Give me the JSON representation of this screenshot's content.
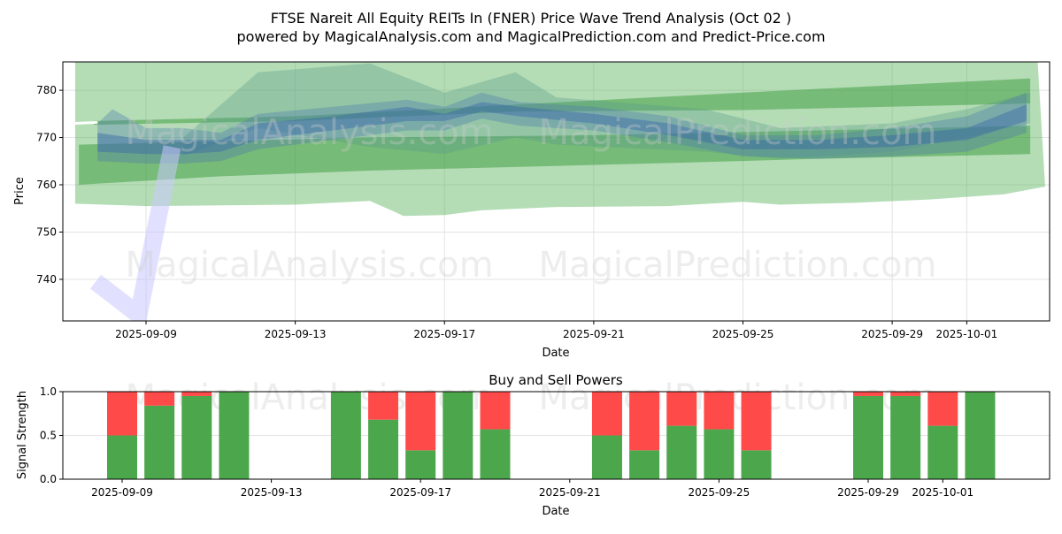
{
  "title_line1": "FTSE Nareit All Equity REITs In (FNER) Price Wave Trend Analysis (Oct 02 )",
  "title_line2": "powered by MagicalAnalysis.com and MagicalPrediction.com and Predict-Price.com",
  "watermark": "MagicalAnalysis.com    MagicalPrediction.com",
  "chart_data": [
    {
      "type": "area",
      "title": "",
      "xlabel": "Date",
      "ylabel": "Price",
      "ylim": [
        731.2,
        786.0
      ],
      "xlim_days_from_2025_09_09": [
        -2.23,
        24.22
      ],
      "y_ticks": [
        "740",
        "750",
        "760",
        "770",
        "780"
      ],
      "x_ticks": [
        {
          "label": "2025-09-09",
          "day": 0
        },
        {
          "label": "2025-09-13",
          "day": 4
        },
        {
          "label": "2025-09-17",
          "day": 8
        },
        {
          "label": "2025-09-21",
          "day": 12
        },
        {
          "label": "2025-09-25",
          "day": 16
        },
        {
          "label": "2025-09-29",
          "day": 20
        },
        {
          "label": "2025-10-01",
          "day": 22
        }
      ],
      "grid": true,
      "bands": [
        {
          "name": "outer-range",
          "color": "#4caf50",
          "opacity": 0.42,
          "upper": [
            [
              -1.9,
              786
            ],
            [
              23.9,
              786
            ]
          ],
          "lower": [
            [
              -1.9,
              756
            ],
            [
              0,
              755.5
            ],
            [
              4,
              755.8
            ],
            [
              6,
              756.6
            ],
            [
              6.6,
              754.5
            ],
            [
              6.9,
              753.4
            ],
            [
              8,
              753.6
            ],
            [
              9,
              754.6
            ],
            [
              11,
              755.3
            ],
            [
              14,
              755.5
            ],
            [
              16,
              756.4
            ],
            [
              17,
              755.8
            ],
            [
              19,
              756.2
            ],
            [
              21,
              756.9
            ],
            [
              23,
              758
            ],
            [
              24.1,
              759.6
            ]
          ]
        },
        {
          "name": "lower-trend",
          "color": "#3a9a3a",
          "opacity": 0.5,
          "upper": [
            [
              -1.8,
              768.5
            ],
            [
              6,
              770
            ],
            [
              12,
              770.5
            ],
            [
              18,
              771.5
            ],
            [
              23.7,
              772.5
            ]
          ],
          "lower": [
            [
              -1.8,
              760
            ],
            [
              2,
              761.8
            ],
            [
              6,
              763
            ],
            [
              10,
              763.8
            ],
            [
              14,
              764.6
            ],
            [
              18,
              765.5
            ],
            [
              23.7,
              766.5
            ]
          ]
        },
        {
          "name": "upper-trend",
          "color": "#3a9a3a",
          "opacity": 0.5,
          "upper": [
            [
              -1.4,
              773.5
            ],
            [
              4,
              774.5
            ],
            [
              10,
              777
            ],
            [
              16,
              779.5
            ],
            [
              23.7,
              782.5
            ]
          ],
          "lower": [
            [
              -1.4,
              772.7
            ],
            [
              4,
              773.5
            ],
            [
              10,
              775.5
            ],
            [
              16,
              775.8
            ],
            [
              23.7,
              777.2
            ]
          ]
        },
        {
          "name": "wave-upper-shade",
          "color": "#5a9a8a",
          "opacity": 0.35,
          "upper": [
            [
              1,
              770
            ],
            [
              3,
              783.8
            ],
            [
              6,
              785.7
            ],
            [
              8,
              779.5
            ],
            [
              9.9,
              783.8
            ],
            [
              11,
              778.5
            ],
            [
              15,
              776
            ],
            [
              17,
              772
            ],
            [
              20,
              773
            ],
            [
              22,
              776
            ],
            [
              23.7,
              779.5
            ]
          ],
          "lower": [
            [
              23.7,
              773
            ],
            [
              22,
              770
            ],
            [
              20,
              767
            ],
            [
              17,
              765.5
            ],
            [
              15,
              767
            ],
            [
              11,
              768.5
            ],
            [
              9.9,
              770
            ],
            [
              8,
              766.5
            ],
            [
              6,
              768
            ],
            [
              3,
              772
            ],
            [
              1,
              766
            ]
          ]
        },
        {
          "name": "wave-blue-wide",
          "color": "#4a78b0",
          "opacity": 0.35,
          "upper": [
            [
              -1.3,
              773
            ],
            [
              -0.9,
              776
            ],
            [
              0,
              772
            ],
            [
              1,
              772
            ],
            [
              2,
              771
            ],
            [
              3,
              775
            ],
            [
              5,
              776.5
            ],
            [
              7,
              778
            ],
            [
              8,
              776.5
            ],
            [
              9,
              779.5
            ],
            [
              10,
              777.5
            ],
            [
              12,
              776.5
            ],
            [
              14,
              774.5
            ],
            [
              16,
              770.5
            ],
            [
              18,
              770.5
            ],
            [
              20,
              772
            ],
            [
              22,
              774.5
            ],
            [
              23.6,
              779.5
            ]
          ],
          "lower": [
            [
              23.6,
              771
            ],
            [
              22,
              767
            ],
            [
              20,
              766
            ],
            [
              18,
              765.5
            ],
            [
              16,
              766
            ],
            [
              14,
              769
            ],
            [
              12,
              771.5
            ],
            [
              10,
              772.5
            ],
            [
              9,
              774
            ],
            [
              8,
              771.5
            ],
            [
              7,
              771.5
            ],
            [
              5,
              769.5
            ],
            [
              3,
              767.5
            ],
            [
              2,
              765
            ],
            [
              1,
              764.5
            ],
            [
              0,
              764.5
            ],
            [
              -1.3,
              765
            ]
          ]
        },
        {
          "name": "wave-blue-core",
          "color": "#3a68a8",
          "opacity": 0.45,
          "upper": [
            [
              -1.3,
              771
            ],
            [
              0,
              769.5
            ],
            [
              1,
              769.5
            ],
            [
              2,
              769.5
            ],
            [
              3,
              773
            ],
            [
              5,
              774.5
            ],
            [
              7,
              776.5
            ],
            [
              8,
              775
            ],
            [
              9,
              777.5
            ],
            [
              10,
              776.5
            ],
            [
              12,
              775
            ],
            [
              14,
              773
            ],
            [
              16,
              769.5
            ],
            [
              18,
              769.5
            ],
            [
              20,
              770.5
            ],
            [
              22,
              772
            ],
            [
              23.6,
              777
            ]
          ],
          "lower": [
            [
              23.6,
              773.5
            ],
            [
              22,
              769.5
            ],
            [
              20,
              768
            ],
            [
              18,
              767.5
            ],
            [
              16,
              767.5
            ],
            [
              14,
              770.5
            ],
            [
              12,
              773
            ],
            [
              10,
              774.5
            ],
            [
              9,
              775.5
            ],
            [
              8,
              773.5
            ],
            [
              7,
              773.5
            ],
            [
              5,
              771.5
            ],
            [
              3,
              769.5
            ],
            [
              2,
              767
            ],
            [
              1,
              766.5
            ],
            [
              0,
              766.5
            ],
            [
              -1.3,
              767
            ]
          ]
        }
      ],
      "check_line": {
        "color": "#c8c8ff",
        "points": [
          [
            -1.35,
            739.5
          ],
          [
            -0.2,
            732.5
          ],
          [
            0.7,
            768
          ]
        ]
      },
      "white_line": {
        "points": [
          [
            -1.9,
            773
          ],
          [
            -1.3,
            773.2
          ]
        ]
      }
    },
    {
      "type": "bar",
      "title": "Buy and Sell Powers",
      "xlabel": "Date",
      "ylabel": "Signal Strength",
      "ylim": [
        0,
        1.0
      ],
      "y_ticks": [
        "0.0",
        "0.5",
        "1.0"
      ],
      "x_ticks": [
        {
          "label": "2025-09-09",
          "day": 0
        },
        {
          "label": "2025-09-13",
          "day": 4
        },
        {
          "label": "2025-09-17",
          "day": 8
        },
        {
          "label": "2025-09-21",
          "day": 12
        },
        {
          "label": "2025-09-25",
          "day": 16
        },
        {
          "label": "2025-09-29",
          "day": 20
        },
        {
          "label": "2025-10-01",
          "day": 22
        }
      ],
      "categories": [
        "2025-09-09",
        "2025-09-10",
        "2025-09-11",
        "2025-09-12",
        "2025-09-15",
        "2025-09-16",
        "2025-09-17",
        "2025-09-18",
        "2025-09-19",
        "2025-09-22",
        "2025-09-23",
        "2025-09-24",
        "2025-09-25",
        "2025-09-26",
        "2025-09-29",
        "2025-09-30",
        "2025-10-01",
        "2025-10-02"
      ],
      "days": [
        0,
        1,
        2,
        3,
        6,
        7,
        8,
        9,
        10,
        13,
        14,
        15,
        16,
        17,
        20,
        21,
        22,
        23
      ],
      "series": [
        {
          "name": "Buy",
          "color": "#4ca64c",
          "values": [
            0.5,
            0.84,
            0.95,
            1.0,
            1.0,
            0.68,
            0.33,
            1.0,
            0.57,
            0.5,
            0.33,
            0.61,
            0.57,
            0.33,
            0.95,
            0.95,
            0.61,
            1.0
          ]
        },
        {
          "name": "Sell",
          "color": "#ff4a4a",
          "values": [
            0.5,
            0.16,
            0.05,
            0.0,
            0.0,
            0.32,
            0.67,
            0.0,
            0.43,
            0.5,
            0.67,
            0.39,
            0.43,
            0.67,
            0.05,
            0.05,
            0.39,
            0.0
          ]
        }
      ]
    }
  ]
}
